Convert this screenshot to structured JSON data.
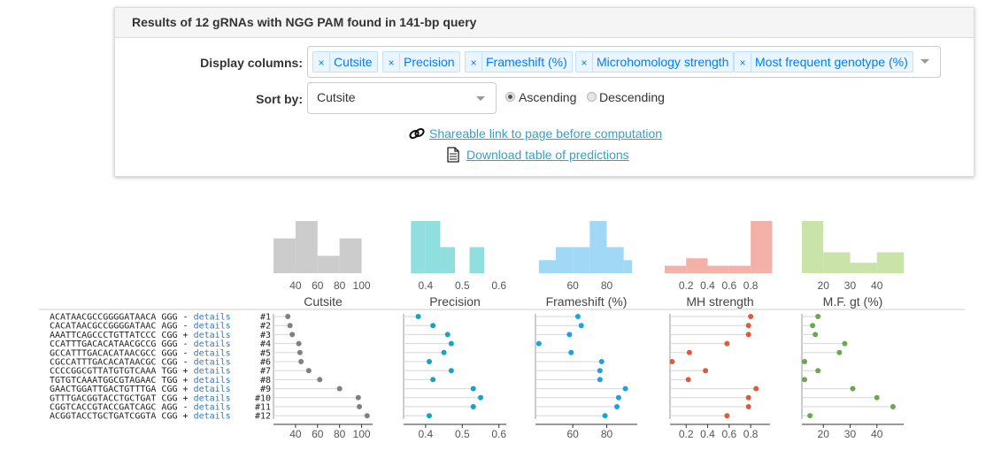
{
  "header": {
    "title": "Results of 12 gRNAs with NGG PAM found in 141-bp query"
  },
  "display_columns": {
    "label": "Display columns:",
    "remove_symbol": "×",
    "selected": [
      "Cutsite",
      "Precision",
      "Frameshift (%)",
      "Microhomology strength",
      "Most frequent genotype (%)"
    ]
  },
  "sort": {
    "label": "Sort by:",
    "value": "Cutsite",
    "ascending_label": "Ascending",
    "descending_label": "Descending",
    "selected_order": "Ascending"
  },
  "links": {
    "shareable": "Shareable link to page before computation",
    "download": "Download table of predictions",
    "shareable_icon": "link-icon",
    "download_icon": "document-icon"
  },
  "colors": {
    "cutsite": "#808080",
    "precision": "#17a2c7",
    "frameshift": "#1ba3e0",
    "mh": "#e05a3a",
    "mf": "#6aa84f",
    "cutsite_hist": "#cccccc",
    "precision_hist": "#91dede",
    "frameshift_hist": "#a1d8f5",
    "mh_hist": "#f4b1a7",
    "mf_hist": "#c9e3a8",
    "link": "#33a1c9",
    "details": "#337ab7"
  },
  "rows": [
    {
      "seq": "ACATAACGCCGGGGATAACA",
      "pam": "GGG",
      "strand": "-",
      "details": "details",
      "id": "#1"
    },
    {
      "seq": "CACATAACGCCGGGGATAAC",
      "pam": "AGG",
      "strand": "-",
      "details": "details",
      "id": "#2"
    },
    {
      "seq": "AAATTCAGCCCTGTTATCCC",
      "pam": "CGG",
      "strand": "+",
      "details": "details",
      "id": "#3"
    },
    {
      "seq": "CCATTTGACACATAACGCCG",
      "pam": "GGG",
      "strand": "-",
      "details": "details",
      "id": "#4"
    },
    {
      "seq": "GCCATTTGACACATAACGCC",
      "pam": "GGG",
      "strand": "-",
      "details": "details",
      "id": "#5"
    },
    {
      "seq": "CGCCATTTGACACATAACGC",
      "pam": "CGG",
      "strand": "-",
      "details": "details",
      "id": "#6"
    },
    {
      "seq": "CCCCGGCGTTATGTGTCAAA",
      "pam": "TGG",
      "strand": "+",
      "details": "details",
      "id": "#7"
    },
    {
      "seq": "TGTGTCAAATGGCGTAGAAC",
      "pam": "TGG",
      "strand": "+",
      "details": "details",
      "id": "#8"
    },
    {
      "seq": "GAACTGGATTGACTGTTTGA",
      "pam": "CGG",
      "strand": "+",
      "details": "details",
      "id": "#9"
    },
    {
      "seq": "GTTTGACGGTACCTGCTGAT",
      "pam": "CGG",
      "strand": "+",
      "details": "details",
      "id": "#10"
    },
    {
      "seq": "CGGTCACCGTACCGATCAGC",
      "pam": "AGG",
      "strand": "-",
      "details": "details",
      "id": "#11"
    },
    {
      "seq": "ACGGTACCTGCTGATCGGTA",
      "pam": "CGG",
      "strand": "+",
      "details": "details",
      "id": "#12"
    }
  ],
  "chart_data": [
    {
      "type": "scatter",
      "title": "Cutsite",
      "xlim": [
        20,
        110
      ],
      "ticks": [
        "40",
        "60",
        "80",
        "100"
      ],
      "values": [
        33,
        35,
        37,
        43,
        44,
        45,
        52,
        62,
        80,
        97,
        98,
        105
      ],
      "hist": {
        "bins": [
          [
            20,
            40
          ],
          [
            40,
            60
          ],
          [
            60,
            80
          ],
          [
            80,
            100
          ]
        ],
        "counts": [
          2,
          3,
          1,
          2
        ]
      }
    },
    {
      "type": "scatter",
      "title": "Precision",
      "xlim": [
        0.34,
        0.62
      ],
      "ticks": [
        "0.4",
        "0.5",
        "0.6"
      ],
      "values": [
        0.38,
        0.42,
        0.46,
        0.47,
        0.45,
        0.41,
        0.47,
        0.42,
        0.53,
        0.55,
        0.53,
        0.41
      ],
      "hist": {
        "bins": [
          [
            0.36,
            0.4
          ],
          [
            0.4,
            0.44
          ],
          [
            0.44,
            0.48
          ],
          [
            0.48,
            0.52
          ],
          [
            0.52,
            0.56
          ]
        ],
        "counts": [
          2,
          2,
          1,
          0,
          1
        ]
      }
    },
    {
      "type": "scatter",
      "title": "Frameshift (%)",
      "xlim": [
        38,
        98
      ],
      "ticks": [
        "60",
        "80"
      ],
      "values": [
        63,
        65,
        58,
        40,
        59,
        77,
        76,
        76,
        91,
        87,
        86,
        79
      ],
      "hist": {
        "bins": [
          [
            40,
            50
          ],
          [
            50,
            60
          ],
          [
            60,
            70
          ],
          [
            70,
            80
          ],
          [
            80,
            90
          ],
          [
            90,
            95
          ]
        ],
        "counts": [
          1,
          2,
          2,
          4,
          2,
          1
        ]
      }
    },
    {
      "type": "scatter",
      "title": "MH strength",
      "xlim": [
        0.05,
        0.98
      ],
      "ticks": [
        "0.2",
        "0.4",
        "0.6",
        "0.8"
      ],
      "values": [
        0.8,
        0.78,
        0.78,
        0.58,
        0.23,
        0.07,
        0.38,
        0.22,
        0.85,
        0.78,
        0.78,
        0.58
      ],
      "hist": {
        "bins": [
          [
            0.0,
            0.2
          ],
          [
            0.2,
            0.4
          ],
          [
            0.4,
            0.6
          ],
          [
            0.6,
            0.8
          ],
          [
            0.8,
            1.0
          ]
        ],
        "counts": [
          1,
          2,
          1,
          1,
          7
        ]
      }
    },
    {
      "type": "scatter",
      "title": "M.F. gt (%)",
      "xlim": [
        12,
        50
      ],
      "ticks": [
        "20",
        "30",
        "40"
      ],
      "values": [
        18,
        16,
        17,
        28,
        26,
        13,
        18,
        13,
        31,
        40,
        46,
        15
      ],
      "hist": {
        "bins": [
          [
            12,
            20
          ],
          [
            20,
            30
          ],
          [
            30,
            40
          ],
          [
            40,
            50
          ]
        ],
        "counts": [
          5,
          2,
          1,
          2
        ]
      }
    }
  ]
}
